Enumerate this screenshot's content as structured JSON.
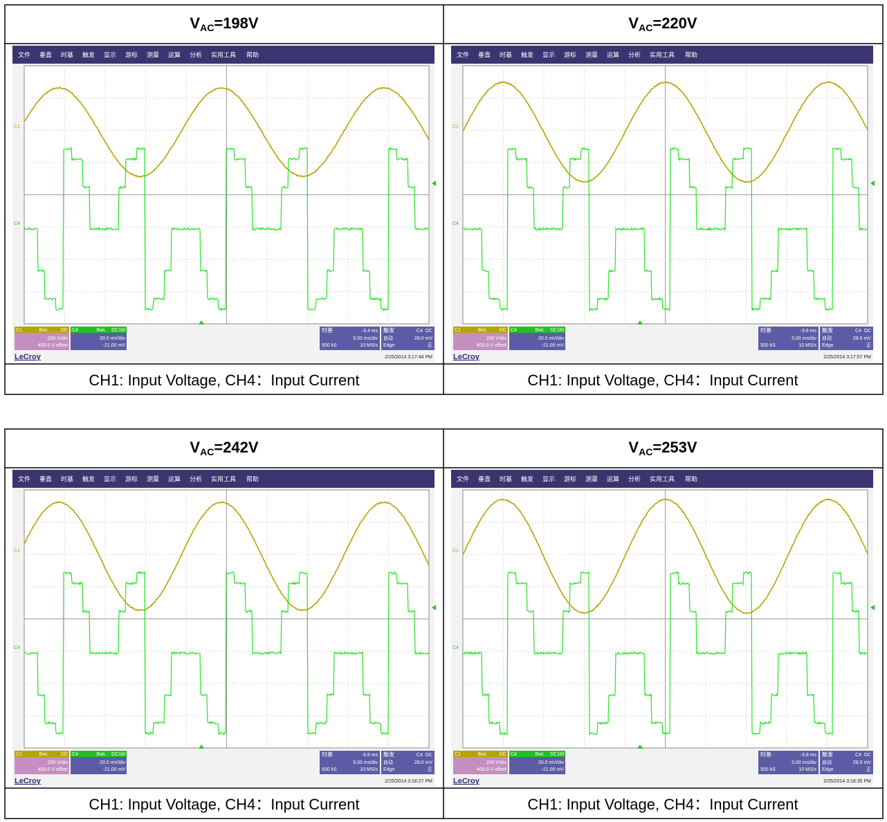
{
  "scope_menu": [
    "文件",
    "垂直",
    "时基",
    "触发",
    "显示",
    "游标",
    "测量",
    "运算",
    "分析",
    "实用工具",
    "帮助"
  ],
  "scope_common": {
    "logo": "LeCroy",
    "c1": {
      "name": "C1",
      "bw": "BwL",
      "coupling": "DC",
      "scale": "200 V/div",
      "offset": "400.0 V offset"
    },
    "c4": {
      "name": "C4",
      "bw": "BwL",
      "coupling": "DC1M",
      "scale": "20.0 mV/div",
      "offset": "-21.00 mV"
    },
    "timebase": {
      "label": "时基",
      "scale": "5.00 ms/div",
      "samples": "500 kS",
      "rate": "10 MS/s"
    },
    "trigger": {
      "label": "触发",
      "source": "C4",
      "coupling": "DC",
      "mode": "自动",
      "level": "28.0 mV",
      "type": "Edge",
      "slope": "正"
    }
  },
  "panels": [
    {
      "title": {
        "main": "V",
        "sub": "AC",
        "rest": "=198V"
      },
      "delay": "-3.4 ms",
      "timestamp": "2/25/2014 3:17:44 PM",
      "caption": "CH1: Input Voltage, CH4：Input Current"
    },
    {
      "title": {
        "main": "V",
        "sub": "AC",
        "rest": "=220V"
      },
      "delay": "-3.6 ms",
      "timestamp": "2/25/2014 3:17:57 PM",
      "caption": "CH1: Input Voltage, CH4：Input Current"
    },
    {
      "title": {
        "main": "V",
        "sub": "AC",
        "rest": "=242V"
      },
      "delay": "-3.8 ms",
      "timestamp": "2/25/2014 3:18:27 PM",
      "caption": "CH1: Input Voltage, CH4：Input Current"
    },
    {
      "title": {
        "main": "V",
        "sub": "AC",
        "rest": "=253V"
      },
      "delay": "-3.8 ms",
      "timestamp": "2/25/2014 3:18:35 PM",
      "caption": "CH1: Input Voltage, CH4：Input Current"
    }
  ]
}
